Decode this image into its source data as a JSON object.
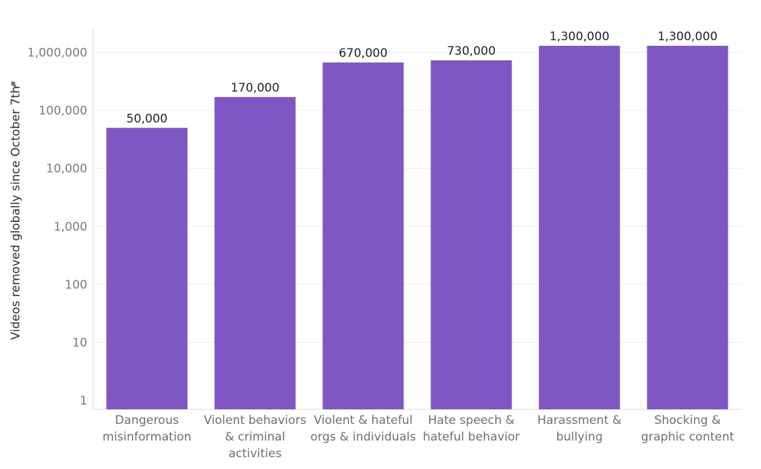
{
  "chart_data": {
    "type": "bar",
    "title": "",
    "xlabel": "",
    "ylabel": "Videos removed globally since October 7th",
    "yscale": "log",
    "ylim": [
      1,
      1300000
    ],
    "grid": true,
    "legend": "none",
    "categories": [
      "Dangerous misinformation",
      "Violent behaviors & criminal activities",
      "Violent & hateful orgs & individuals",
      "Hate speech & hateful behavior",
      "Harassment & bullying",
      "Shocking & graphic content"
    ],
    "values": [
      50000,
      170000,
      670000,
      730000,
      1300000,
      1300000
    ],
    "data_labels": [
      "50,000",
      "170,000",
      "670,000",
      "730,000",
      "1,300,000",
      "1,300,000"
    ],
    "y_ticks": [
      1,
      10,
      100,
      1000,
      10000,
      100000,
      1000000
    ],
    "y_tick_labels": [
      "1",
      "10",
      "100",
      "1,000",
      "10,000",
      "100,000",
      "1,000,000"
    ],
    "colors": {
      "bar": "#7e57c2",
      "grid": "#ececec",
      "axis": "#dadada"
    },
    "icons": {
      "ylabel_pin": "pin-icon"
    }
  }
}
